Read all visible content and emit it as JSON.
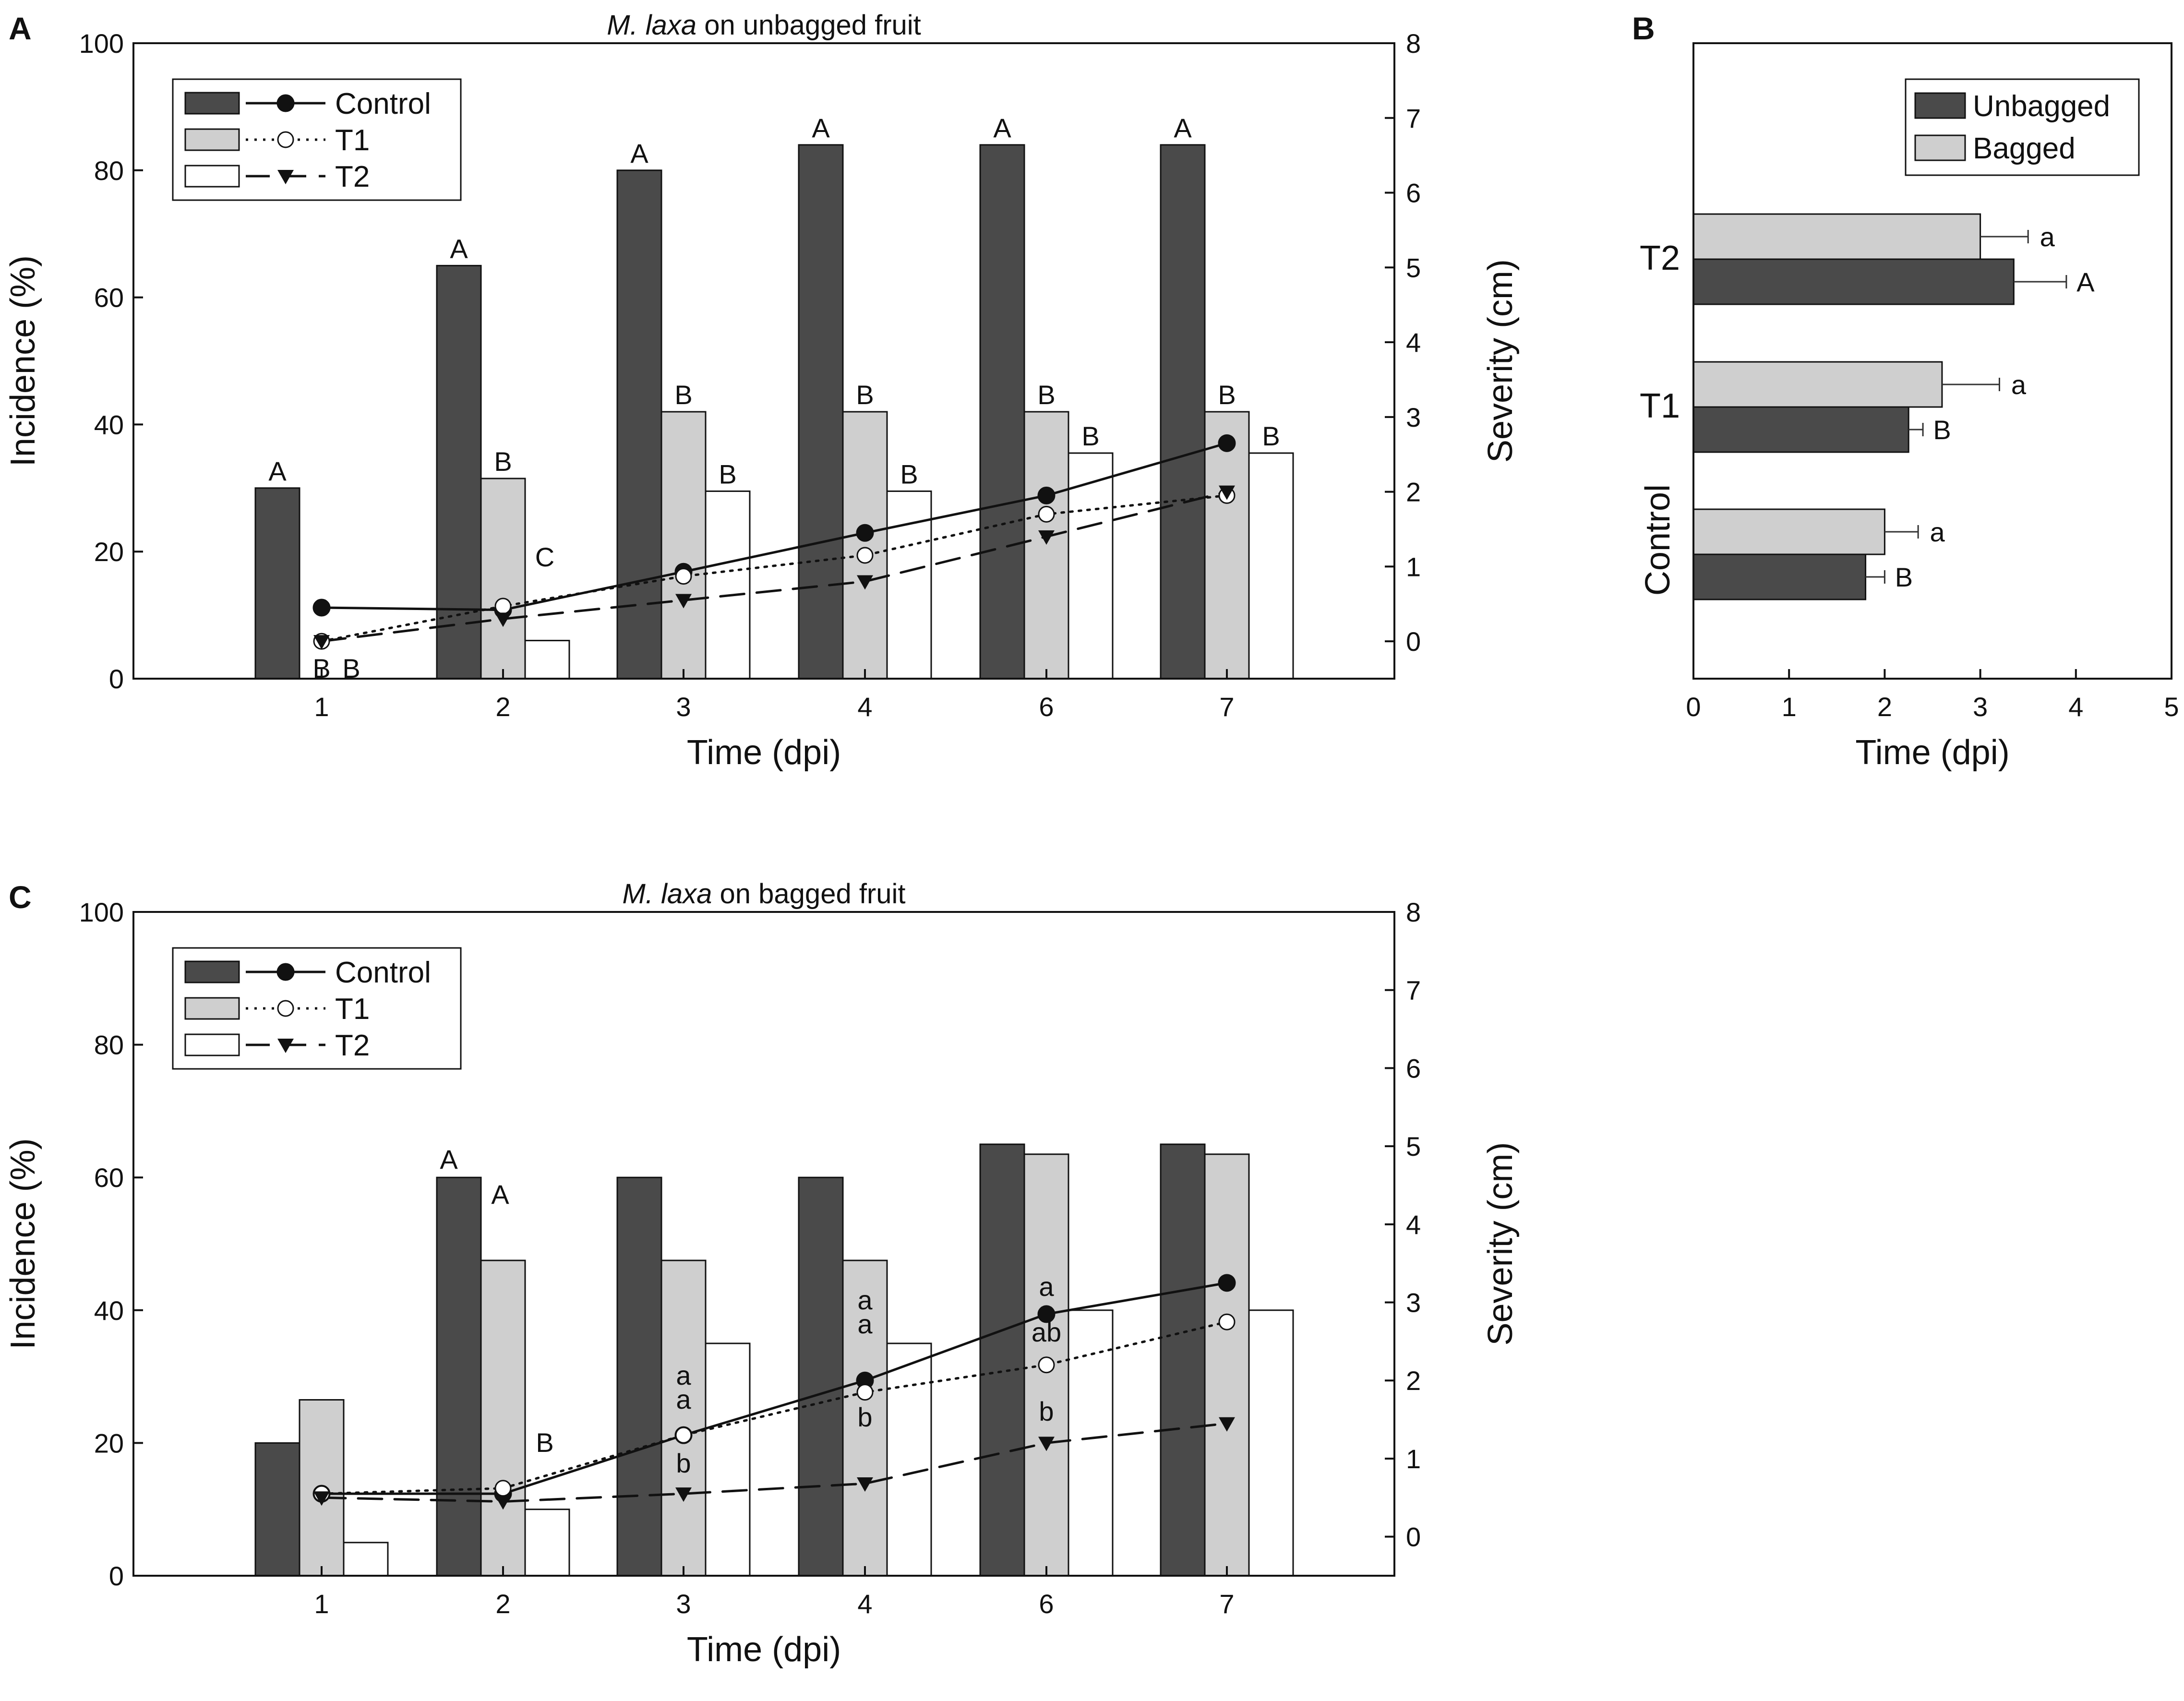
{
  "chart_data": [
    {
      "panel": "A",
      "type": "bar+line",
      "title_italic": "M. laxa",
      "title_rest": " on unbagged fruit",
      "categories": [
        "1",
        "2",
        "3",
        "4",
        "6",
        "7"
      ],
      "xlabel": "Time (dpi)",
      "ylabel_left": "Incidence (%)",
      "ylabel_right": "Severity (cm)",
      "ylim_left": [
        0,
        100
      ],
      "yticks_left": [
        "0",
        "20",
        "40",
        "60",
        "80",
        "100"
      ],
      "ylim_right": [
        -0.5,
        8
      ],
      "yticks_right": [
        "0",
        "1",
        "2",
        "3",
        "4",
        "5",
        "6",
        "7",
        "8"
      ],
      "bar_series": [
        {
          "name": "Control",
          "values": [
            30,
            65,
            80,
            84,
            84,
            84
          ],
          "labels": [
            "A",
            "A",
            "A",
            "A",
            "A",
            "A"
          ]
        },
        {
          "name": "T1",
          "values": [
            0,
            31.5,
            42,
            42,
            42,
            42
          ],
          "labels": [
            "B",
            "B",
            "B",
            "B",
            "B",
            "B"
          ]
        },
        {
          "name": "T2",
          "values": [
            0,
            6,
            29.5,
            29.5,
            35.5,
            35.5
          ],
          "labels": [
            "B",
            "C",
            "B",
            "B",
            "B",
            "B"
          ]
        }
      ],
      "line_series": [
        {
          "name": "Control",
          "values": [
            0.45,
            0.42,
            0.93,
            1.45,
            1.95,
            2.65
          ]
        },
        {
          "name": "T1",
          "values": [
            0,
            0.47,
            0.87,
            1.15,
            1.7,
            1.95
          ]
        },
        {
          "name": "T2",
          "values": [
            0,
            0.3,
            0.55,
            0.8,
            1.4,
            2.0
          ]
        }
      ],
      "legend": [
        "Control",
        "T1",
        "T2"
      ]
    },
    {
      "panel": "B",
      "type": "horizontal-bar",
      "categories": [
        "Control",
        "T1",
        "T2"
      ],
      "series": [
        {
          "name": "Unbagged",
          "values": [
            1.8,
            2.25,
            3.35
          ],
          "errors": [
            0.2,
            0.15,
            0.55
          ],
          "labels": [
            "B",
            "B",
            "A"
          ]
        },
        {
          "name": "Bagged",
          "values": [
            2.0,
            2.6,
            3.0
          ],
          "errors": [
            0.35,
            0.6,
            0.5
          ],
          "labels": [
            "a",
            "a",
            "a"
          ]
        }
      ],
      "xlabel": "Time (dpi)",
      "xlim": [
        0,
        5
      ],
      "xticks": [
        "0",
        "1",
        "2",
        "3",
        "4",
        "5"
      ],
      "legend": [
        "Unbagged",
        "Bagged"
      ]
    },
    {
      "panel": "C",
      "type": "bar+line",
      "title_italic": "M. laxa",
      "title_rest": " on bagged fruit",
      "categories": [
        "1",
        "2",
        "3",
        "4",
        "6",
        "7"
      ],
      "xlabel": "Time (dpi)",
      "ylabel_left": "Incidence (%)",
      "ylabel_right": "Severity (cm)",
      "ylim_left": [
        0,
        100
      ],
      "yticks_left": [
        "0",
        "20",
        "40",
        "60",
        "80",
        "100"
      ],
      "ylim_right": [
        -0.5,
        8
      ],
      "yticks_right": [
        "0",
        "1",
        "2",
        "3",
        "4",
        "5",
        "6",
        "7",
        "8"
      ],
      "bar_series": [
        {
          "name": "Control",
          "values": [
            20,
            60,
            60,
            60,
            65,
            65
          ]
        },
        {
          "name": "T1",
          "values": [
            26.5,
            47.5,
            47.5,
            47.5,
            63.5,
            63.5
          ]
        },
        {
          "name": "T2",
          "values": [
            5,
            10,
            35,
            35,
            40,
            40
          ]
        }
      ],
      "bar_annotations": [
        "A",
        "A",
        "B"
      ],
      "line_series": [
        {
          "name": "Control",
          "values": [
            0.55,
            0.55,
            1.3,
            2.0,
            2.85,
            3.25
          ]
        },
        {
          "name": "T1",
          "values": [
            0.55,
            0.62,
            1.3,
            1.85,
            2.2,
            2.75
          ]
        },
        {
          "name": "T2",
          "values": [
            0.5,
            0.45,
            0.55,
            0.68,
            1.2,
            1.45
          ]
        }
      ],
      "line_annotations": [
        "a",
        "a",
        "b",
        "a",
        "a",
        "b",
        "a",
        "ab",
        "b"
      ],
      "legend": [
        "Control",
        "T1",
        "T2"
      ]
    }
  ]
}
